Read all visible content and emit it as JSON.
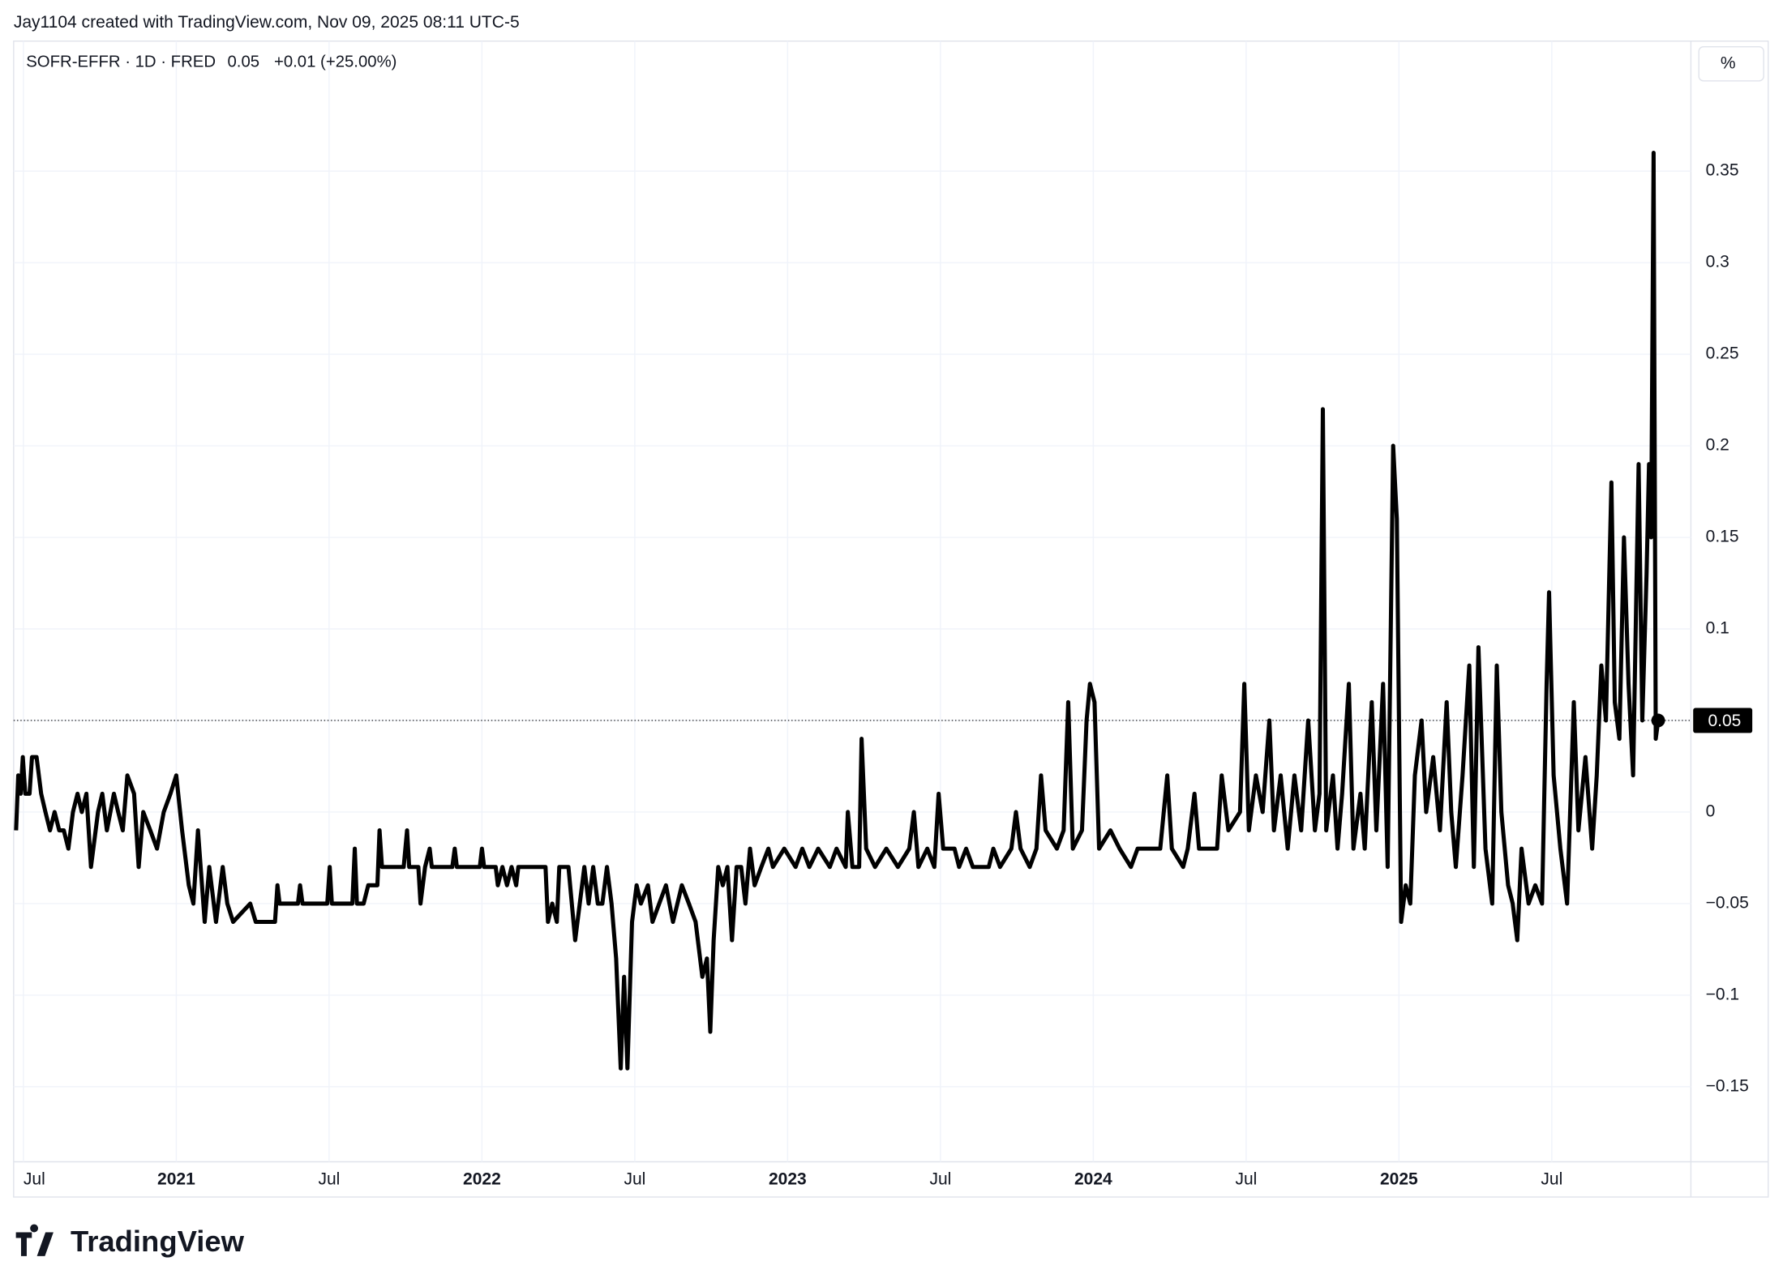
{
  "header": {
    "attribution": "Jay1104 created with TradingView.com, Nov 09, 2025 08:11 UTC-5",
    "symbol": "SOFR-EFFR · 1D · FRED",
    "last": "0.05",
    "change": "+0.01 (+25.00%)",
    "unit_button": "%",
    "logo": "TradingView"
  },
  "chart_data": {
    "type": "line",
    "color": "#000000",
    "grid": true,
    "x": [
      2020.476,
      2020.483,
      2020.491,
      2020.498,
      2020.506,
      2020.52,
      2020.528,
      2020.543,
      2020.558,
      2020.572,
      2020.587,
      2020.602,
      2020.617,
      2020.632,
      2020.647,
      2020.662,
      2020.677,
      2020.691,
      2020.706,
      2020.721,
      2020.744,
      2020.758,
      2020.773,
      2020.796,
      2020.81,
      2020.825,
      2020.84,
      2020.862,
      2020.877,
      2020.892,
      2020.915,
      2020.937,
      2020.959,
      2020.981,
      2021.0,
      2021.019,
      2021.041,
      2021.056,
      2021.071,
      2021.093,
      2021.108,
      2021.13,
      2021.152,
      2021.167,
      2021.186,
      2021.242,
      2021.26,
      2021.323,
      2021.331,
      2021.338,
      2021.398,
      2021.405,
      2021.413,
      2021.494,
      2021.502,
      2021.509,
      2021.576,
      2021.584,
      2021.591,
      2021.613,
      2021.628,
      2021.658,
      2021.665,
      2021.673,
      2021.744,
      2021.755,
      2021.762,
      2021.792,
      2021.799,
      2021.814,
      2021.829,
      2021.836,
      2021.903,
      2021.911,
      2021.918,
      2021.993,
      2022.0,
      2022.007,
      2022.045,
      2022.052,
      2022.067,
      2022.082,
      2022.097,
      2022.112,
      2022.119,
      2022.208,
      2022.216,
      2022.23,
      2022.245,
      2022.253,
      2022.283,
      2022.305,
      2022.32,
      2022.335,
      2022.349,
      2022.364,
      2022.379,
      2022.394,
      2022.409,
      2022.424,
      2022.439,
      2022.454,
      2022.465,
      2022.476,
      2022.491,
      2022.506,
      2022.52,
      2022.543,
      2022.558,
      2022.58,
      2022.602,
      2022.625,
      2022.654,
      2022.677,
      2022.699,
      2022.721,
      2022.736,
      2022.747,
      2022.758,
      2022.773,
      2022.788,
      2022.803,
      2022.818,
      2022.833,
      2022.848,
      2022.862,
      2022.877,
      2022.892,
      2022.914,
      2022.937,
      2022.952,
      2022.989,
      2023.026,
      2023.048,
      2023.071,
      2023.1,
      2023.138,
      2023.16,
      2023.19,
      2023.197,
      2023.212,
      2023.234,
      2023.242,
      2023.257,
      2023.286,
      2023.323,
      2023.361,
      2023.398,
      2023.413,
      2023.428,
      2023.457,
      2023.48,
      2023.494,
      2023.509,
      2023.546,
      2023.561,
      2023.584,
      2023.606,
      2023.658,
      2023.673,
      2023.695,
      2023.732,
      2023.747,
      2023.762,
      2023.792,
      2023.814,
      2023.829,
      2023.844,
      2023.881,
      2023.903,
      2023.918,
      2023.933,
      2023.963,
      2023.978,
      2023.989,
      2024.004,
      2024.019,
      2024.056,
      2024.086,
      2024.123,
      2024.145,
      2024.219,
      2024.242,
      2024.257,
      2024.294,
      2024.309,
      2024.331,
      2024.346,
      2024.405,
      2024.42,
      2024.442,
      2024.48,
      2024.494,
      2024.509,
      2024.532,
      2024.554,
      2024.576,
      2024.591,
      2024.613,
      2024.636,
      2024.658,
      2024.68,
      2024.703,
      2024.725,
      2024.74,
      2024.751,
      2024.762,
      2024.784,
      2024.799,
      2024.814,
      2024.836,
      2024.851,
      2024.874,
      2024.888,
      2024.911,
      2024.926,
      2024.948,
      2024.963,
      2024.981,
      2024.993,
      2025.007,
      2025.022,
      2025.037,
      2025.052,
      2025.074,
      2025.089,
      2025.112,
      2025.134,
      2025.156,
      2025.171,
      2025.186,
      2025.208,
      2025.23,
      2025.245,
      2025.26,
      2025.283,
      2025.305,
      2025.32,
      2025.335,
      2025.357,
      2025.372,
      2025.387,
      2025.401,
      2025.424,
      2025.446,
      2025.468,
      2025.483,
      2025.491,
      2025.506,
      2025.528,
      2025.55,
      2025.572,
      2025.587,
      2025.61,
      2025.632,
      2025.647,
      2025.662,
      2025.677,
      2025.695,
      2025.706,
      2025.721,
      2025.736,
      2025.751,
      2025.766,
      2025.784,
      2025.796,
      2025.81,
      2025.818,
      2025.825,
      2025.833,
      2025.84,
      2025.848
    ],
    "values": [
      -0.01,
      0.02,
      0.01,
      0.03,
      0.01,
      0.01,
      0.03,
      0.03,
      0.01,
      0.0,
      -0.01,
      0.0,
      -0.01,
      -0.01,
      -0.02,
      0.0,
      0.01,
      0.0,
      0.01,
      -0.03,
      0.0,
      0.01,
      -0.01,
      0.01,
      0.0,
      -0.01,
      0.02,
      0.01,
      -0.03,
      0.0,
      -0.01,
      -0.02,
      0.0,
      0.01,
      0.02,
      -0.01,
      -0.04,
      -0.05,
      -0.01,
      -0.06,
      -0.03,
      -0.06,
      -0.03,
      -0.05,
      -0.06,
      -0.05,
      -0.06,
      -0.06,
      -0.04,
      -0.05,
      -0.05,
      -0.04,
      -0.05,
      -0.05,
      -0.03,
      -0.05,
      -0.05,
      -0.02,
      -0.05,
      -0.05,
      -0.04,
      -0.04,
      -0.01,
      -0.03,
      -0.03,
      -0.01,
      -0.03,
      -0.03,
      -0.05,
      -0.03,
      -0.02,
      -0.03,
      -0.03,
      -0.02,
      -0.03,
      -0.03,
      -0.02,
      -0.03,
      -0.03,
      -0.04,
      -0.03,
      -0.04,
      -0.03,
      -0.04,
      -0.03,
      -0.03,
      -0.06,
      -0.05,
      -0.06,
      -0.03,
      -0.03,
      -0.07,
      -0.05,
      -0.03,
      -0.05,
      -0.03,
      -0.05,
      -0.05,
      -0.03,
      -0.05,
      -0.08,
      -0.14,
      -0.09,
      -0.14,
      -0.06,
      -0.04,
      -0.05,
      -0.04,
      -0.06,
      -0.05,
      -0.04,
      -0.06,
      -0.04,
      -0.05,
      -0.06,
      -0.09,
      -0.08,
      -0.12,
      -0.07,
      -0.03,
      -0.04,
      -0.03,
      -0.07,
      -0.03,
      -0.03,
      -0.05,
      -0.02,
      -0.04,
      -0.03,
      -0.02,
      -0.03,
      -0.02,
      -0.03,
      -0.02,
      -0.03,
      -0.02,
      -0.03,
      -0.02,
      -0.03,
      0.0,
      -0.03,
      -0.03,
      0.04,
      -0.02,
      -0.03,
      -0.02,
      -0.03,
      -0.02,
      0.0,
      -0.03,
      -0.02,
      -0.03,
      0.01,
      -0.02,
      -0.02,
      -0.03,
      -0.02,
      -0.03,
      -0.03,
      -0.02,
      -0.03,
      -0.02,
      0.0,
      -0.02,
      -0.03,
      -0.02,
      0.02,
      -0.01,
      -0.02,
      -0.01,
      0.06,
      -0.02,
      -0.01,
      0.05,
      0.07,
      0.06,
      -0.02,
      -0.01,
      -0.02,
      -0.03,
      -0.02,
      -0.02,
      0.02,
      -0.02,
      -0.03,
      -0.02,
      0.01,
      -0.02,
      -0.02,
      0.02,
      -0.01,
      0.0,
      0.07,
      -0.01,
      0.02,
      0.0,
      0.05,
      -0.01,
      0.02,
      -0.02,
      0.02,
      -0.01,
      0.05,
      -0.01,
      0.01,
      0.22,
      -0.01,
      0.02,
      -0.02,
      0.01,
      0.07,
      -0.02,
      0.01,
      -0.02,
      0.06,
      -0.01,
      0.07,
      -0.03,
      0.2,
      0.16,
      -0.06,
      -0.04,
      -0.05,
      0.02,
      0.05,
      0.0,
      0.03,
      -0.01,
      0.06,
      0.0,
      -0.03,
      0.02,
      0.08,
      -0.03,
      0.09,
      -0.02,
      -0.05,
      0.08,
      0.0,
      -0.04,
      -0.05,
      -0.07,
      -0.02,
      -0.05,
      -0.04,
      -0.05,
      0.07,
      0.12,
      0.02,
      -0.02,
      -0.05,
      0.06,
      -0.01,
      0.03,
      -0.02,
      0.02,
      0.08,
      0.05,
      0.18,
      0.06,
      0.04,
      0.15,
      0.07,
      0.02,
      0.19,
      0.05,
      0.13,
      0.19,
      0.15,
      0.36,
      0.04,
      0.05
    ],
    "last_value": 0.05,
    "last_label": "0.05",
    "xlim": [
      2020.468,
      2025.955
    ],
    "ylim": [
      -0.191,
      0.421
    ],
    "xticks": [
      {
        "value": 2020.5,
        "label": "Jul"
      },
      {
        "value": 2021,
        "label": "2021"
      },
      {
        "value": 2021.5,
        "label": "Jul"
      },
      {
        "value": 2022,
        "label": "2022"
      },
      {
        "value": 2022.5,
        "label": "Jul"
      },
      {
        "value": 2023,
        "label": "2023"
      },
      {
        "value": 2023.5,
        "label": "Jul"
      },
      {
        "value": 2024,
        "label": "2024"
      },
      {
        "value": 2024.5,
        "label": "Jul"
      },
      {
        "value": 2025,
        "label": "2025"
      },
      {
        "value": 2025.5,
        "label": "Jul"
      }
    ],
    "yticks": [
      0.35,
      0.3,
      0.25,
      0.2,
      0.15,
      0.1,
      0.05,
      0,
      {
        "value": -0.05,
        "label": "−0.05"
      },
      {
        "value": -0.1,
        "label": "−0.1"
      },
      {
        "value": -0.15,
        "label": "−0.15"
      }
    ]
  }
}
